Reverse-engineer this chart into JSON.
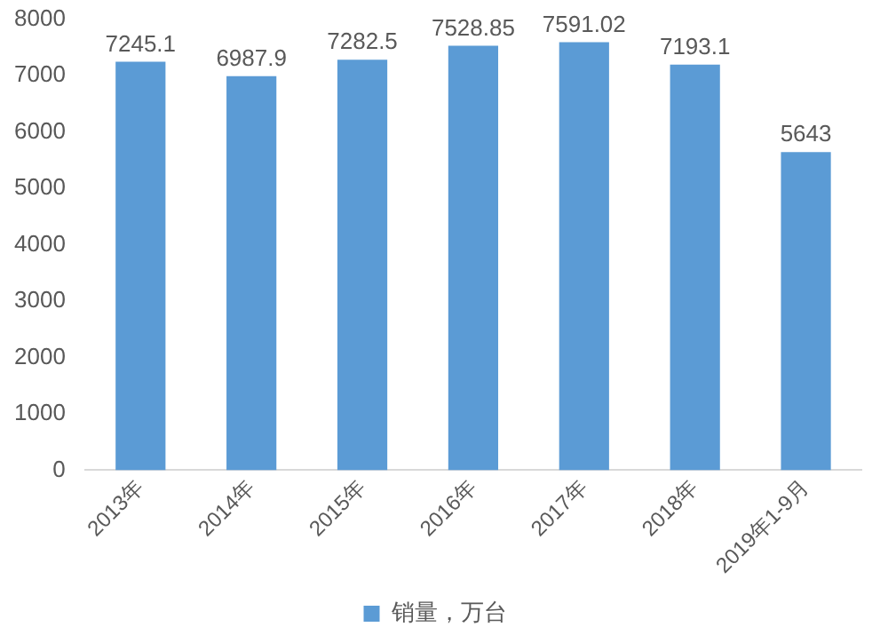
{
  "chart_data": {
    "type": "bar",
    "categories": [
      "2013年",
      "2014年",
      "2015年",
      "2016年",
      "2017年",
      "2018年",
      "2019年1-9月"
    ],
    "series": [
      {
        "name": "销量，万台",
        "color": "#5b9bd5",
        "values": [
          7245.1,
          6987.9,
          7282.5,
          7528.85,
          7591.02,
          7193.1,
          5643
        ]
      }
    ],
    "ylim": [
      0,
      8000
    ],
    "yticks": [
      0,
      1000,
      2000,
      3000,
      4000,
      5000,
      6000,
      7000,
      8000
    ],
    "grid": false,
    "legend": "bottom",
    "data_labels": true
  }
}
